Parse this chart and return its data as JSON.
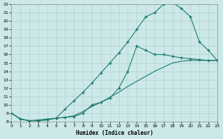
{
  "xlabel": "Humidex (Indice chaleur)",
  "bg_color": "#cce8e8",
  "grid_color": "#aacccc",
  "line_color": "#1a7a6e",
  "xlim": [
    0,
    23
  ],
  "ylim": [
    8,
    22
  ],
  "xticks": [
    0,
    1,
    2,
    3,
    4,
    5,
    6,
    7,
    8,
    9,
    10,
    11,
    12,
    13,
    14,
    15,
    16,
    17,
    18,
    19,
    20,
    21,
    22,
    23
  ],
  "yticks": [
    8,
    9,
    10,
    11,
    12,
    13,
    14,
    15,
    16,
    17,
    18,
    19,
    20,
    21,
    22
  ],
  "line1_x": [
    0,
    1,
    2,
    3,
    4,
    5,
    6,
    7,
    8,
    9,
    10,
    11,
    12,
    13,
    14,
    15,
    16,
    17,
    18,
    19,
    20,
    21,
    22,
    23
  ],
  "line1_y": [
    9.0,
    8.3,
    8.1,
    8.1,
    8.2,
    8.4,
    9.5,
    10.5,
    11.5,
    12.6,
    13.8,
    15.0,
    16.2,
    17.5,
    19.0,
    20.5,
    21.0,
    22.0,
    22.2,
    21.5,
    20.5,
    17.5,
    16.5,
    15.3
  ],
  "line2_x": [
    0,
    1,
    2,
    3,
    4,
    5,
    6,
    7,
    8,
    9,
    10,
    11,
    12,
    13,
    14,
    15,
    16,
    17,
    18,
    19,
    20,
    21,
    22,
    23
  ],
  "line2_y": [
    9.0,
    8.3,
    8.1,
    8.1,
    8.2,
    8.4,
    8.5,
    8.6,
    9.0,
    10.0,
    10.3,
    10.8,
    12.0,
    14.0,
    17.0,
    16.5,
    16.0,
    16.0,
    15.8,
    15.6,
    15.5,
    15.4,
    15.3,
    15.3
  ],
  "line3_x": [
    0,
    1,
    2,
    3,
    4,
    5,
    6,
    7,
    8,
    9,
    10,
    11,
    12,
    13,
    14,
    15,
    16,
    17,
    18,
    19,
    20,
    21,
    22,
    23
  ],
  "line3_y": [
    9.0,
    8.3,
    8.1,
    8.2,
    8.3,
    8.4,
    8.5,
    8.7,
    9.2,
    9.8,
    10.3,
    10.9,
    11.5,
    12.2,
    12.8,
    13.4,
    14.0,
    14.5,
    15.0,
    15.2,
    15.3,
    15.3,
    15.3,
    15.3
  ]
}
